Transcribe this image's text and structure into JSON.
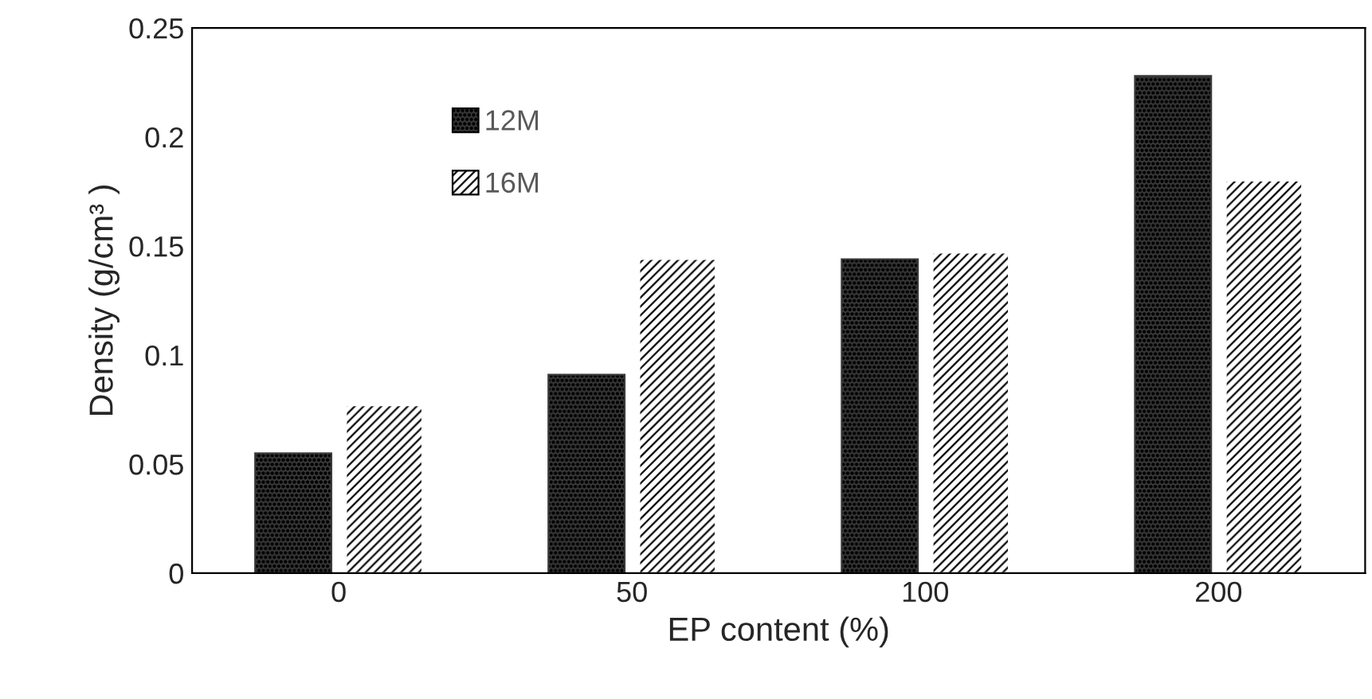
{
  "chart_data": {
    "type": "bar",
    "xlabel": "EP content (%)",
    "ylabel": "Density (g/cm³ )",
    "categories": [
      "0",
      "50",
      "100",
      "200"
    ],
    "series": [
      {
        "name": "12M",
        "color": "#3a3a3a",
        "values": [
          0.055,
          0.091,
          0.144,
          0.228
        ]
      },
      {
        "name": "16M",
        "color": "#ffffff",
        "values": [
          0.077,
          0.144,
          0.147,
          0.18
        ]
      }
    ],
    "ylim": [
      0,
      0.25
    ],
    "yticks": [
      0,
      0.05,
      0.1,
      0.15,
      0.2,
      0.25
    ],
    "grid": false,
    "legend": "top left"
  }
}
